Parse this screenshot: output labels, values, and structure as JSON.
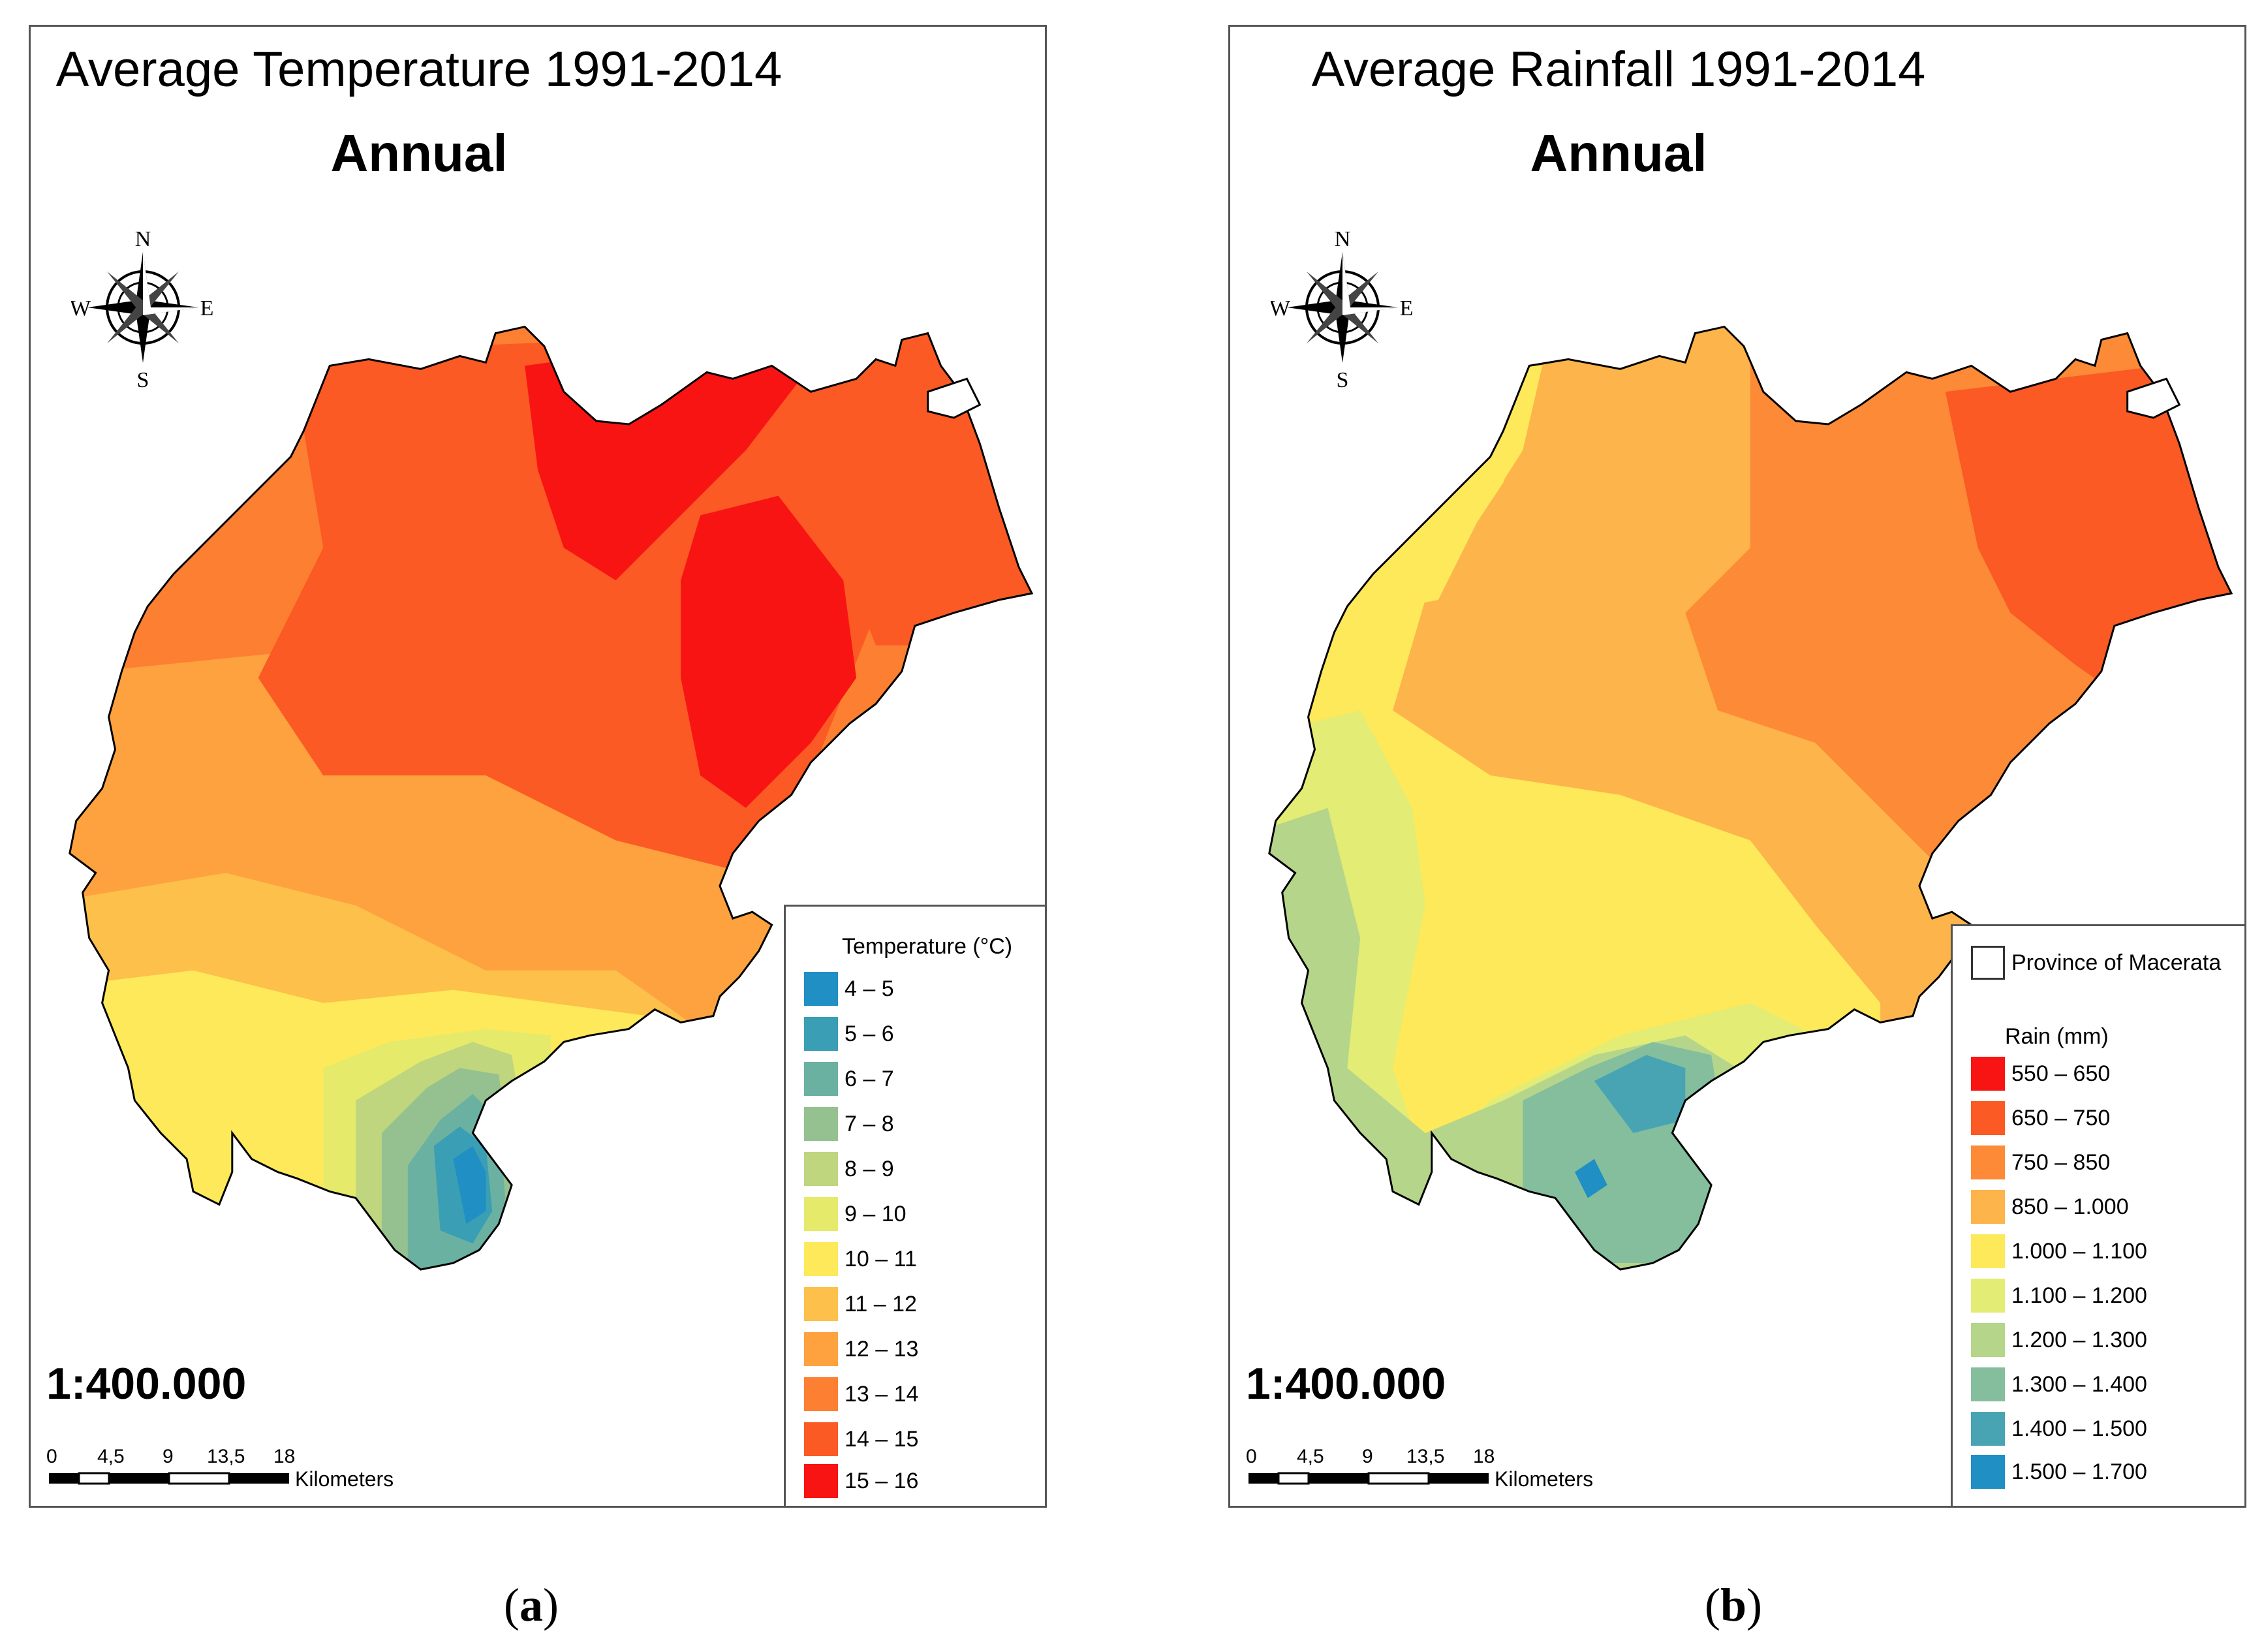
{
  "panels": [
    {
      "title": "Average Temperature 1991-2014",
      "subtitle": "Annual",
      "compass": {
        "n": "N",
        "s": "S",
        "e": "E",
        "w": "W"
      },
      "scale_text": "1:400.000",
      "scalebar": {
        "ticks": [
          "0",
          "4,5",
          "9",
          "13,5",
          "18"
        ],
        "unit": "Kilometers"
      },
      "legend": {
        "title": "Temperature (°C)",
        "items": [
          {
            "label": "4 – 5",
            "color": "#1f8fc4"
          },
          {
            "label": "5 – 6",
            "color": "#3a9fb4"
          },
          {
            "label": "6 – 7",
            "color": "#6bb1a2"
          },
          {
            "label": "7 – 8",
            "color": "#95c190"
          },
          {
            "label": "8 – 9",
            "color": "#bfd57e"
          },
          {
            "label": "9 – 10",
            "color": "#e6ea6a"
          },
          {
            "label": "10 – 11",
            "color": "#fde95a"
          },
          {
            "label": "11 – 12",
            "color": "#fdc04a"
          },
          {
            "label": "12 – 13",
            "color": "#fda23e"
          },
          {
            "label": "13 – 14",
            "color": "#fd8032"
          },
          {
            "label": "14 – 15",
            "color": "#fb5a24"
          },
          {
            "label": "15 – 16",
            "color": "#f91414"
          }
        ]
      },
      "caption": {
        "open": "(",
        "letter": "a",
        "close": ")"
      }
    },
    {
      "title": "Average Rainfall 1991-2014",
      "subtitle": "Annual",
      "compass": {
        "n": "N",
        "s": "S",
        "e": "E",
        "w": "W"
      },
      "scale_text": "1:400.000",
      "scalebar": {
        "ticks": [
          "0",
          "4,5",
          "9",
          "13,5",
          "18"
        ],
        "unit": "Kilometers"
      },
      "legend": {
        "boundary_label": "Province of Macerata",
        "title": "Rain (mm)",
        "items": [
          {
            "label": "550 – 650",
            "color": "#f91414"
          },
          {
            "label": "650 – 750",
            "color": "#fb5a24"
          },
          {
            "label": "750 – 850",
            "color": "#fd8a36"
          },
          {
            "label": "850 – 1.000",
            "color": "#fdb44a"
          },
          {
            "label": "1.000 – 1.100",
            "color": "#fde95a"
          },
          {
            "label": "1.100 – 1.200",
            "color": "#e3ec74"
          },
          {
            "label": "1.200 – 1.300",
            "color": "#b5d68a"
          },
          {
            "label": "1.300 – 1.400",
            "color": "#84be9d"
          },
          {
            "label": "1.400 – 1.500",
            "color": "#48a4b2"
          },
          {
            "label": "1.500 – 1.700",
            "color": "#1f8fc4"
          }
        ]
      },
      "caption": {
        "open": "(",
        "letter": "b",
        "close": ")"
      }
    }
  ]
}
